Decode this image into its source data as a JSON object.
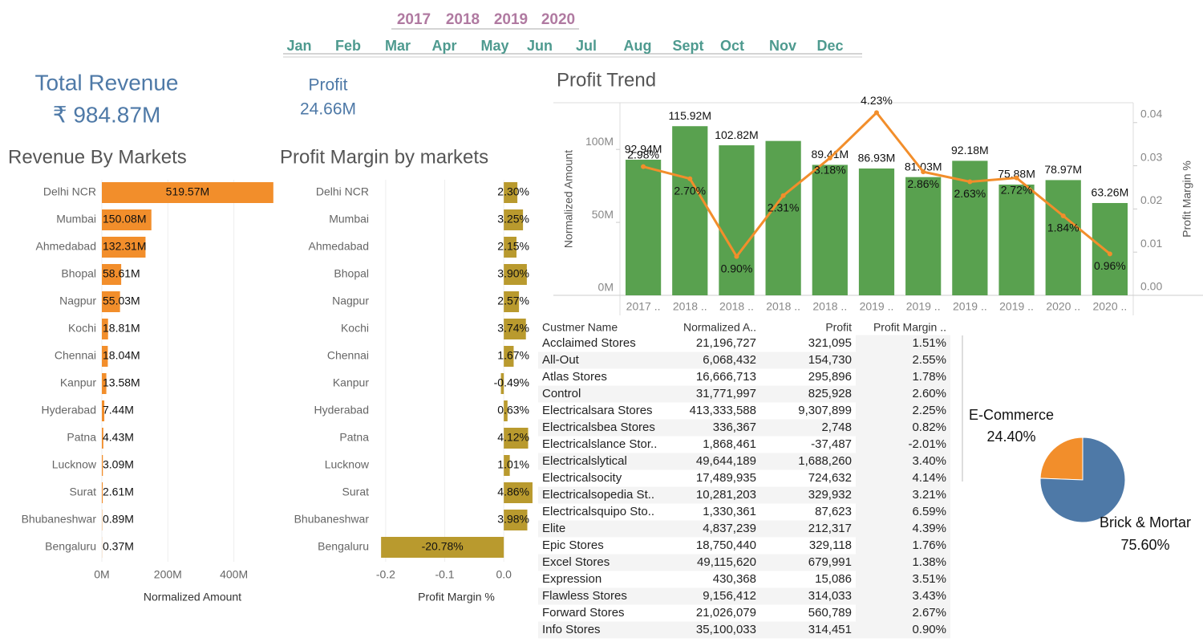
{
  "filters": {
    "years": [
      "2017",
      "2018",
      "2019",
      "2020"
    ],
    "months": [
      "Jan",
      "Feb",
      "Mar",
      "Apr",
      "May",
      "Jun",
      "Jul",
      "Aug",
      "Sept",
      "Oct",
      "Nov",
      "Dec"
    ]
  },
  "kpis": [
    {
      "label": "Total Revenue",
      "value": "₹ 984.87M"
    },
    {
      "label": "Profit",
      "value": "24.66M"
    }
  ],
  "chart_data": [
    {
      "type": "hbar",
      "title": "Revenue By Markets",
      "categories": [
        "Delhi NCR",
        "Mumbai",
        "Ahmedabad",
        "Bhopal",
        "Nagpur",
        "Kochi",
        "Chennai",
        "Kanpur",
        "Hyderabad",
        "Patna",
        "Lucknow",
        "Surat",
        "Bhubaneshwar",
        "Bengaluru"
      ],
      "values": [
        519570000,
        150080000,
        132310000,
        58610000,
        55030000,
        18810000,
        18040000,
        13580000,
        7440000,
        4430000,
        3090000,
        2610000,
        890000,
        370000
      ],
      "value_labels": [
        "519.57M",
        "150.08M",
        "132.31M",
        "58.61M",
        "55.03M",
        "18.81M",
        "18.04M",
        "13.58M",
        "7.44M",
        "4.43M",
        "3.09M",
        "2.61M",
        "0.89M",
        "0.37M"
      ],
      "color": "#f28e2b",
      "xlim": [
        0,
        520000000
      ],
      "xticks": [
        {
          "value": 0,
          "label": "0M"
        },
        {
          "value": 200000000,
          "label": "200M"
        },
        {
          "value": 400000000,
          "label": "400M"
        }
      ],
      "xlabel": "Normalized Amount",
      "grid": true
    },
    {
      "type": "hbar",
      "title": "Profit Margin by markets",
      "categories": [
        "Delhi NCR",
        "Mumbai",
        "Ahmedabad",
        "Bhopal",
        "Nagpur",
        "Kochi",
        "Chennai",
        "Kanpur",
        "Hyderabad",
        "Patna",
        "Lucknow",
        "Surat",
        "Bhubaneshwar",
        "Bengaluru"
      ],
      "values": [
        0.023,
        0.0325,
        0.0215,
        0.039,
        0.0257,
        0.0374,
        0.0167,
        -0.0049,
        0.0063,
        0.0412,
        0.0101,
        0.0486,
        0.0398,
        -0.2078
      ],
      "value_labels": [
        "2.30%",
        "3.25%",
        "2.15%",
        "3.90%",
        "2.57%",
        "3.74%",
        "1.67%",
        "-0.49%",
        "0.63%",
        "4.12%",
        "1.01%",
        "4.86%",
        "3.98%",
        "-20.78%"
      ],
      "color": "#b99a2e",
      "xlim": [
        -0.208,
        0.05
      ],
      "xticks": [
        {
          "value": -0.2,
          "label": "-0.2"
        },
        {
          "value": -0.1,
          "label": "-0.1"
        },
        {
          "value": 0,
          "label": "0.0"
        }
      ],
      "xlabel": "Profit Margin %",
      "grid": true
    },
    {
      "type": "combo",
      "title": "Profit Trend",
      "categories": [
        "2017 ..",
        "2018 ..",
        "2018 ..",
        "2018 ..",
        "2018 ..",
        "2019 ..",
        "2019 ..",
        "2019 ..",
        "2019 ..",
        "2020 ..",
        "2020 .."
      ],
      "series": [
        {
          "type": "bar",
          "color": "#59a14f",
          "values": [
            92940000,
            115920000,
            102820000,
            105800000,
            89410000,
            86930000,
            81030000,
            92180000,
            75880000,
            78970000,
            63260000
          ],
          "value_labels": [
            "92.94M",
            "115.92M",
            "102.82M",
            null,
            "89.41M",
            "86.93M",
            "81.03M",
            "92.18M",
            "75.88M",
            "78.97M",
            "63.26M"
          ]
        },
        {
          "type": "line",
          "axis": "y2",
          "color": "#f28e2b",
          "values": [
            0.0298,
            0.027,
            0.009,
            0.0231,
            0.0318,
            0.0423,
            0.0286,
            0.0263,
            0.0272,
            0.0184,
            0.0096
          ],
          "value_labels": [
            "2.98%",
            "2.70%",
            "0.90%",
            "2.31%",
            "3.18%",
            "4.23%",
            "2.86%",
            "2.63%",
            "2.72%",
            "1.84%",
            "0.96%"
          ]
        }
      ],
      "ylim": [
        0,
        132000000
      ],
      "yticks": [
        {
          "value": 0,
          "label": "0M"
        },
        {
          "value": 50000000,
          "label": "50M"
        },
        {
          "value": 100000000,
          "label": "100M"
        }
      ],
      "y2lim": [
        0,
        0.0446
      ],
      "y2ticks": [
        {
          "value": 0,
          "label": "0.00"
        },
        {
          "value": 0.01,
          "label": "0.01"
        },
        {
          "value": 0.02,
          "label": "0.02"
        },
        {
          "value": 0.03,
          "label": "0.03"
        },
        {
          "value": 0.04,
          "label": "0.04"
        }
      ],
      "ylabel": "Normalized Amount",
      "y2label": "Profit Margin %"
    },
    {
      "type": "pie",
      "categories": [
        "E-Commerce",
        "Brick & Mortar"
      ],
      "values": [
        24.4,
        75.6
      ],
      "value_labels": [
        "24.40%",
        "75.60%"
      ],
      "colors": [
        "#f28e2b",
        "#4e79a7"
      ]
    }
  ],
  "table": {
    "columns": [
      "Custmer Name",
      "Normalized A..",
      "Profit",
      "Profit Margin .."
    ],
    "rows": [
      [
        "Acclaimed Stores",
        "21,196,727",
        "321,095",
        "1.51%"
      ],
      [
        "All-Out",
        "6,068,432",
        "154,730",
        "2.55%"
      ],
      [
        "Atlas Stores",
        "16,666,713",
        "295,896",
        "1.78%"
      ],
      [
        "Control",
        "31,771,997",
        "825,928",
        "2.60%"
      ],
      [
        "Electricalsara Stores",
        "413,333,588",
        "9,307,899",
        "2.25%"
      ],
      [
        "Electricalsbea Stores",
        "336,367",
        "2,748",
        "0.82%"
      ],
      [
        "Electricalslance Stor..",
        "1,868,461",
        "-37,487",
        "-2.01%"
      ],
      [
        "Electricalslytical",
        "49,644,189",
        "1,688,260",
        "3.40%"
      ],
      [
        "Electricalsocity",
        "17,489,935",
        "724,632",
        "4.14%"
      ],
      [
        "Electricalsopedia St..",
        "10,281,203",
        "329,932",
        "3.21%"
      ],
      [
        "Electricalsquipo Sto..",
        "1,330,361",
        "87,623",
        "6.59%"
      ],
      [
        "Elite",
        "4,837,239",
        "212,317",
        "4.39%"
      ],
      [
        "Epic Stores",
        "18,750,440",
        "329,118",
        "1.76%"
      ],
      [
        "Excel Stores",
        "49,115,620",
        "679,991",
        "1.38%"
      ],
      [
        "Expression",
        "430,368",
        "15,086",
        "3.51%"
      ],
      [
        "Flawless Stores",
        "9,156,412",
        "314,033",
        "3.43%"
      ],
      [
        "Forward Stores",
        "21,026,079",
        "560,789",
        "2.67%"
      ],
      [
        "Info Stores",
        "35,100,033",
        "314,451",
        "0.90%"
      ]
    ]
  }
}
